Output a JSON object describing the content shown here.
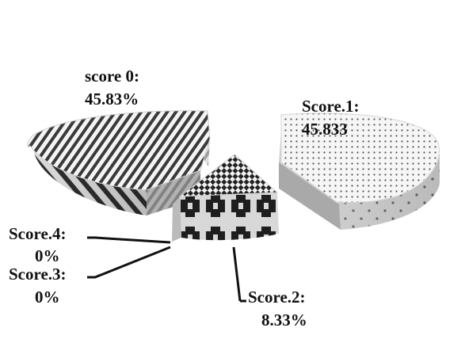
{
  "chart_data": {
    "type": "pie",
    "style": "3d-exploded",
    "categories": [
      "score 0",
      "Score.1",
      "Score.2",
      "Score.3",
      "Score.4"
    ],
    "values": [
      45.83,
      45.833,
      8.33,
      0,
      0
    ],
    "label_names": [
      "score 0:",
      "Score.1:",
      "Score.2:",
      "Score.3:",
      "Score.4:"
    ],
    "label_values": [
      "45.83%",
      "45.833",
      "8.33%",
      "0%",
      "0%"
    ],
    "patterns": [
      "diagonal-stripes",
      "dots",
      "checker",
      "none",
      "none"
    ],
    "colors": {
      "background": "#ffffff",
      "text": "#111111",
      "slice_light": "#f2f2f2",
      "slice_side": "#bdbdbd",
      "pattern_ink": "#333333"
    },
    "legend": "none",
    "grid": false
  }
}
